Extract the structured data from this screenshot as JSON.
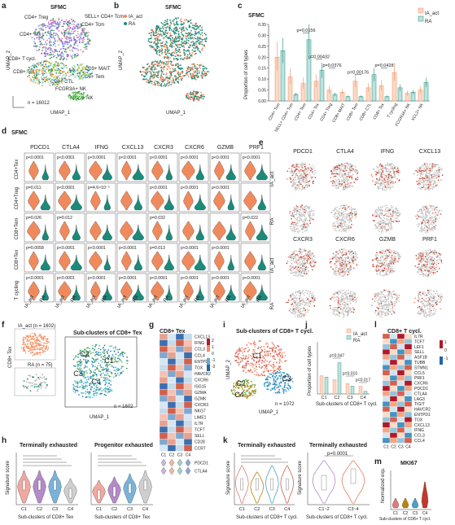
{
  "colors": {
    "ia": "#f08a5d",
    "ra": "#1b8a7a",
    "grey": "#c8c8c8",
    "red": "#c0392b",
    "blue": "#2c6fb2"
  },
  "panels": {
    "a": {
      "letter": "a",
      "title": "SFMC",
      "xlab": "UMAP_1",
      "ylab": "UMAP_2",
      "n": "n = 16012",
      "clusters": [
        "CD4+ Treg",
        "SELL+ CD4+ Tcm",
        "CD4+ Tcm",
        "CD4+ Tex",
        "CD8+ T cycl.",
        "CD8+ Tex",
        "CD8+ CTL",
        "CD8+ MAIT",
        "CD8+ Tem",
        "FCGR3A+ NK",
        "XCL2+ NK"
      ]
    },
    "b": {
      "letter": "b",
      "title": "SFMC",
      "xlab": "UMAP_1",
      "ylab": "UMAP_2",
      "legend": [
        "IA_act",
        "RA"
      ]
    },
    "c": {
      "letter": "c",
      "title": "SFMC",
      "ylab": "Proportion of cell types",
      "legend": [
        "IA_act",
        "RA"
      ],
      "pvals": [
        "p=0.0156",
        "p=0.00432",
        "p=0.0376",
        "p=0.00176",
        "p=0.0428"
      ],
      "yticks": [
        "0.00",
        "0.05",
        "0.10",
        "0.15",
        "0.20",
        "0.25",
        "0.30",
        "0.35"
      ],
      "categories": [
        "CD4+ Tcm",
        "SELL+ CD4+ Tcm",
        "CD4+ Tem",
        "CD4+ Tex",
        "CD4+ Treg",
        "CD8+ MAIT",
        "CD8+ Tem",
        "CD8+ CTL",
        "CD8+ Tex",
        "T cycling",
        "FCGR3A+ NK",
        "XCL2+ NK"
      ]
    },
    "d": {
      "letter": "d",
      "title": "SFMC",
      "genes": [
        "PDCD1",
        "CTLA4",
        "IFNG",
        "CXCL13",
        "CXCR3",
        "CXCR6",
        "GZMB",
        "PRF1"
      ],
      "rows": [
        "CD4+Tex",
        "CD4+Treg",
        "CD8+Tem",
        "CD8+Tex",
        "T cycling"
      ],
      "xlabels": [
        "IA_act",
        "RA"
      ],
      "pvals": [
        [
          "p<0.0001",
          "p<0.0001",
          "p<0.0001",
          "p<0.0001",
          "p<0.0001",
          "p<0.0001",
          "p<0.0001",
          "p<0.0001"
        ],
        [
          "p=0.011",
          "p<0.0001",
          "p=4.6×10⁻⁵",
          "",
          "p<0.0001",
          "p<0.0001",
          "p<0.0001",
          ""
        ],
        [
          "p=0.026",
          "p=0.012",
          "",
          "",
          "p=0.032",
          "",
          "",
          "p=0.022"
        ],
        [
          "p=0.0058",
          "p<0.0001",
          "p<0.0001",
          "p<0.0001",
          "p=0.013",
          "p<0.0001",
          "p<0.0001",
          ""
        ],
        [
          "p<0.0001",
          "p<0.0001",
          "p<0.0001",
          "p<0.0001",
          "p<0.0001",
          "p<0.0001",
          "p<0.0001",
          "p<0.0001"
        ]
      ]
    },
    "e": {
      "letter": "e",
      "genes_top": [
        "PDCD1",
        "CTLA4",
        "IFNG",
        "CXCL13"
      ],
      "genes_bot": [
        "CXCR3",
        "CXCR6",
        "GZMB",
        "PRF1"
      ],
      "rows": [
        "IA_act",
        "RA"
      ]
    },
    "f": {
      "letter": "f",
      "ia_label": "IA_act (n = 1602)",
      "ra_label": "RA (n = 75)",
      "side": "CD8+ Tex",
      "title": "Sub-clusters of CD8+ Tex",
      "clusters": [
        "C1",
        "C2",
        "C3",
        "C4"
      ],
      "n": "n = 1602",
      "xlab": "UMAP_1"
    },
    "g": {
      "letter": "g",
      "title": "CD8+ Tex",
      "genes": [
        "CXCL13",
        "IFNG",
        "CCL3",
        "CCL4",
        "ENTPD1",
        "TOX",
        "HAVCR2",
        "CXCR6",
        "ISG15",
        "GZMA",
        "GZMK",
        "CXCR3",
        "NKG7",
        "LIME1",
        "IL7R",
        "TCF7",
        "SELL",
        "CD28",
        "CCR7"
      ],
      "cols": [
        "C1",
        "C2",
        "C3",
        "C4"
      ],
      "scale": [
        "2",
        "1",
        "0",
        "-1",
        "-2"
      ],
      "vgenes": [
        "PDCD1",
        "CTLA4"
      ]
    },
    "h": {
      "letter": "h",
      "t1": "Terminally exhausted",
      "t2": "Progenitor exhausted",
      "ylab": "Signature score",
      "xlab": "Sub-clusters of CD8+ Tex",
      "cats": [
        "C1",
        "C2",
        "C3",
        "C4"
      ]
    },
    "i": {
      "letter": "i",
      "title": "Sub-clusters of CD8+ T cycl.",
      "clusters": [
        "C1",
        "C2",
        "C3",
        "C4"
      ],
      "n": "n = 1072",
      "xlab": "UMAP_1",
      "ylab": "UMAP_2"
    },
    "j": {
      "letter": "j",
      "ylab": "Proportion of cell types",
      "xlab": "Sub-clusters of CD8+ T cycl.",
      "legend": [
        "IA_act",
        "RA"
      ],
      "pvals": [
        "p=0.047",
        "p=0.010",
        "p=0.017"
      ],
      "cats": [
        "C1",
        "C2",
        "C3",
        "C4"
      ]
    },
    "k": {
      "letter": "k",
      "t1": "Terminally exhausted",
      "t2": "Terminally exhausted",
      "ylab": "Signature score",
      "xlab": "Sub-clusters of CD8+ T cycl.",
      "cats": [
        "C1",
        "C2",
        "C3",
        "C4"
      ],
      "cats2": [
        "C1~2",
        "C3~4"
      ],
      "pval": "p=0.0001"
    },
    "l": {
      "letter": "l",
      "title": "CD8+ T cycl.",
      "genes": [
        "IL7R",
        "TCF7",
        "LEF1",
        "SELL",
        "ASF1B",
        "TUBB",
        "STMN1",
        "CCL5",
        "PRF1",
        "CXCR6",
        "PDCD1",
        "CTLA4",
        "LAG3",
        "TIGIT",
        "HAVCR2",
        "ENTPD1",
        "TOX",
        "CXCL13",
        "IFNG",
        "CCL3",
        "CCL4"
      ],
      "cols": [
        "C1",
        "C2",
        "C3",
        "C4"
      ],
      "scale": [
        "1",
        "0",
        "-1"
      ]
    },
    "m": {
      "letter": "m",
      "title": "MKI67",
      "ylab": "Normalized exp.",
      "xlab": "Sub-clusters of CD8+ T cycl.",
      "cats": [
        "C1",
        "C2",
        "C3",
        "C4"
      ]
    }
  }
}
